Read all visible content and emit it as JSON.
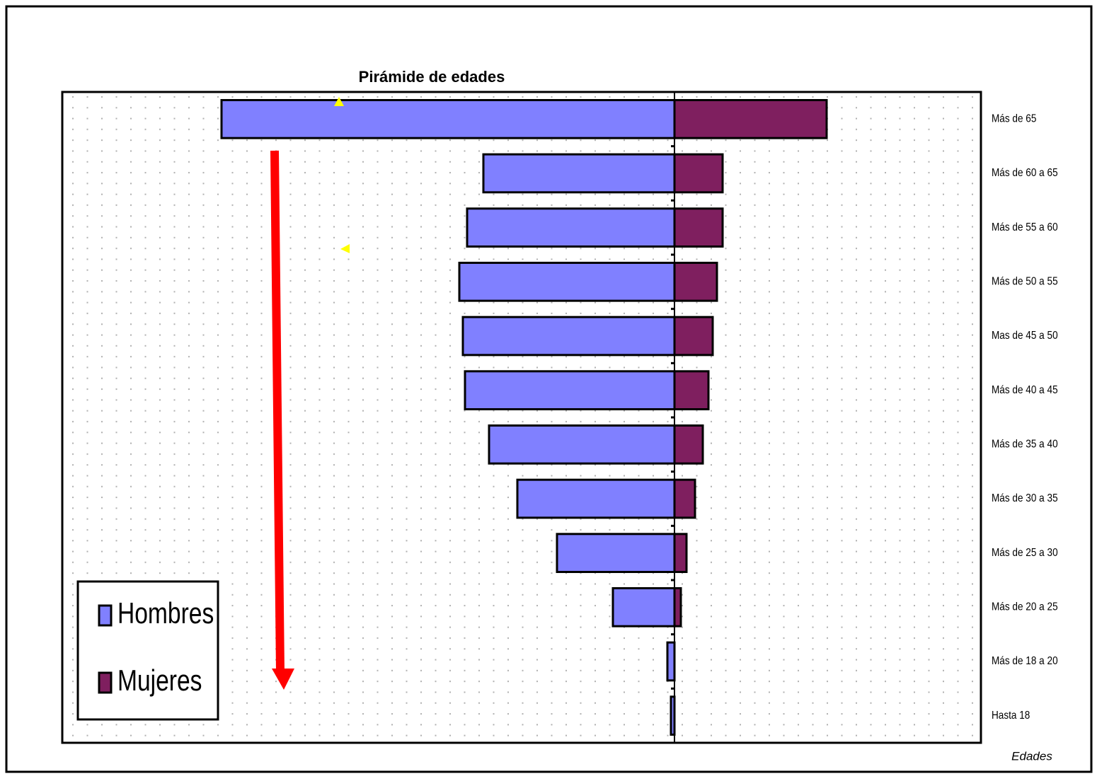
{
  "chart_data": {
    "type": "bar",
    "orientation": "horizontal",
    "stacked": "diverging",
    "title": "Pirámide de edades",
    "y_axis_label": "Edades",
    "categories": [
      "Más de 65",
      "Más de 60 a 65",
      "Más de 55 a 60",
      "Más de 50 a 55",
      "Mas de 45 a 50",
      "Más de 40 a 45",
      "Más de 35 a 40",
      "Más de 30 a 35",
      "Más de 25 a 30",
      "Más de 20 a 25",
      "Más de 18 a 20",
      "Hasta 18"
    ],
    "series": [
      {
        "name": "Hombres",
        "color": "#8080ff",
        "values": [
          -640,
          -270,
          -293,
          -304,
          -299,
          -296,
          -262,
          -222,
          -166,
          -87,
          -10,
          -5
        ]
      },
      {
        "name": "Mujeres",
        "color": "#7f1f5f",
        "values": [
          215,
          68,
          68,
          60,
          54,
          48,
          40,
          29,
          17,
          9,
          0,
          0
        ]
      }
    ],
    "xlim": [
      -865,
      433
    ],
    "legend": "lower-left"
  }
}
